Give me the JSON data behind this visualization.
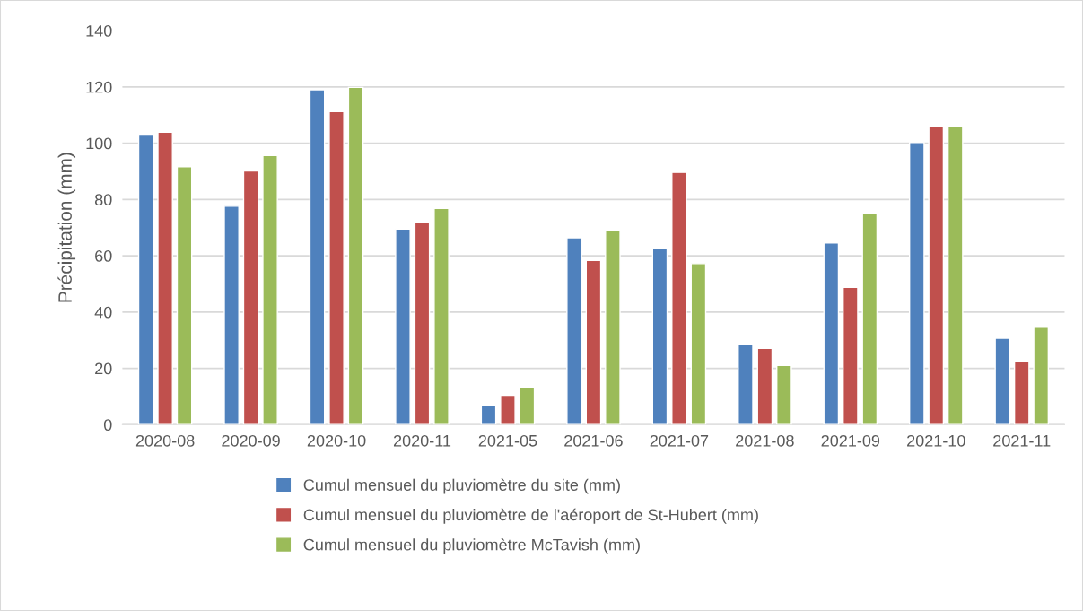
{
  "chart_data": {
    "type": "bar",
    "categories": [
      "2020-08",
      "2020-09",
      "2020-10",
      "2020-11",
      "2021-05",
      "2021-06",
      "2021-07",
      "2021-08",
      "2021-09",
      "2021-10",
      "2021-11"
    ],
    "series": [
      {
        "name": "Cumul mensuel du pluviomètre du site (mm)",
        "color": "#4f81bd",
        "values": [
          102.9,
          77.6,
          119,
          69.5,
          6.7,
          66.4,
          62.5,
          28.4,
          64.5,
          100.2,
          30.7
        ]
      },
      {
        "name": "Cumul mensuel du pluviomètre de l'aéroport de St-Hubert (mm)",
        "color": "#c0504d",
        "values": [
          103.9,
          90.1,
          111.2,
          72,
          10.4,
          58.3,
          89.6,
          27.1,
          48.8,
          105.8,
          22.5
        ]
      },
      {
        "name": "Cumul mensuel du pluviomètre McTavish (mm)",
        "color": "#9bbb59",
        "values": [
          91.6,
          95.6,
          119.8,
          76.8,
          13.4,
          68.9,
          57.2,
          21,
          74.9,
          105.8,
          34.6
        ]
      }
    ],
    "ylabel": "Précipitation (mm)",
    "ylim": [
      0,
      140
    ],
    "yticks": [
      0,
      20,
      40,
      60,
      80,
      100,
      120,
      140
    ],
    "grid": "y",
    "legend": "bottom"
  }
}
